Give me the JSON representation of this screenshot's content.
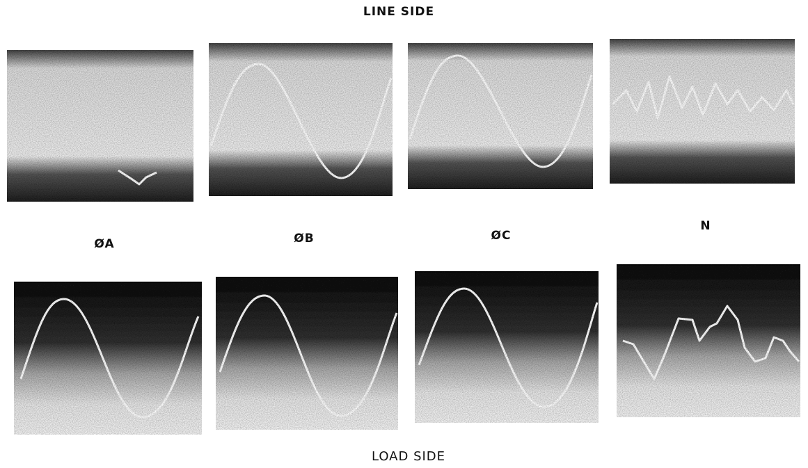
{
  "header": {
    "title": "LINE SIDE"
  },
  "channels": [
    {
      "label": "ØA"
    },
    {
      "label": "ØB"
    },
    {
      "label": "ØC"
    },
    {
      "label": "N"
    }
  ],
  "footer": {
    "caption": "LOAD SIDE"
  }
}
